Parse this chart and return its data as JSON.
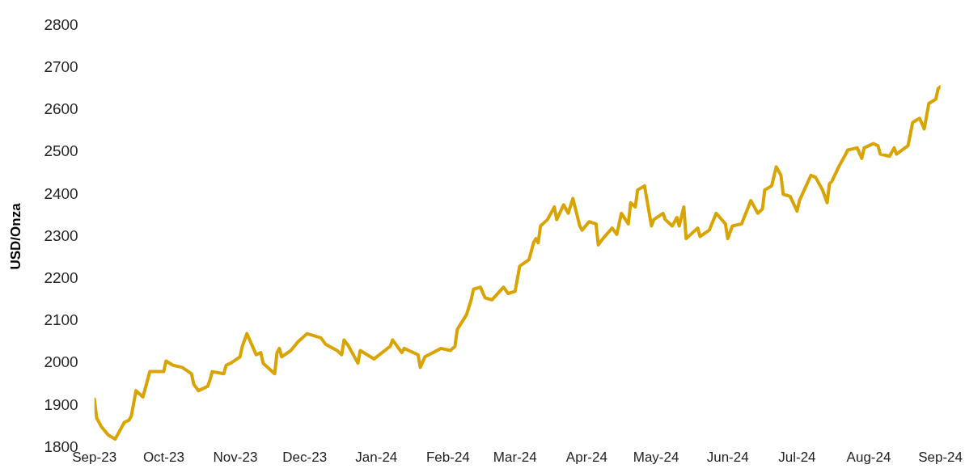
{
  "chart_data": {
    "type": "line",
    "ylabel": "USD/Onza",
    "legend": false,
    "grid": false,
    "marker": "none",
    "line_style": "solid",
    "xlim": [
      "2023-09-20",
      "2024-09-20"
    ],
    "xticks": [
      {
        "value": "2023-09-20",
        "label": "Sep-23"
      },
      {
        "value": "2023-10-20",
        "label": "Oct-23"
      },
      {
        "value": "2023-11-20",
        "label": "Nov-23"
      },
      {
        "value": "2023-12-20",
        "label": "Dec-23"
      },
      {
        "value": "2024-01-20",
        "label": "Jan-24"
      },
      {
        "value": "2024-02-20",
        "label": "Feb-24"
      },
      {
        "value": "2024-03-20",
        "label": "Mar-24"
      },
      {
        "value": "2024-04-20",
        "label": "Apr-24"
      },
      {
        "value": "2024-05-20",
        "label": "May-24"
      },
      {
        "value": "2024-06-20",
        "label": "Jun-24"
      },
      {
        "value": "2024-07-20",
        "label": "Jul-24"
      },
      {
        "value": "2024-08-20",
        "label": "Aug-24"
      },
      {
        "value": "2024-09-20",
        "label": "Sep-24"
      }
    ],
    "ylim": [
      1800,
      2800
    ],
    "yticks": [
      1800,
      1900,
      2000,
      2100,
      2200,
      2300,
      2400,
      2500,
      2600,
      2700,
      2800
    ],
    "series": [
      {
        "color": "#d9a400",
        "x": [
          "2023-09-20",
          "2023-09-21",
          "2023-09-23",
          "2023-09-26",
          "2023-09-29",
          "2023-10-03",
          "2023-10-05",
          "2023-10-06",
          "2023-10-08",
          "2023-10-11",
          "2023-10-14",
          "2023-10-20",
          "2023-10-21",
          "2023-10-24",
          "2023-10-28",
          "2023-11-01",
          "2023-11-02",
          "2023-11-04",
          "2023-11-08",
          "2023-11-09",
          "2023-11-10",
          "2023-11-15",
          "2023-11-16",
          "2023-11-18",
          "2023-11-22",
          "2023-11-23",
          "2023-11-25",
          "2023-11-29",
          "2023-12-01",
          "2023-12-02",
          "2023-12-07",
          "2023-12-08",
          "2023-12-09",
          "2023-12-10",
          "2023-12-14",
          "2023-12-17",
          "2023-12-21",
          "2023-12-27",
          "2023-12-29",
          "2024-01-03",
          "2024-01-05",
          "2024-01-06",
          "2024-01-08",
          "2024-01-12",
          "2024-01-13",
          "2024-01-16",
          "2024-01-19",
          "2024-01-26",
          "2024-01-27",
          "2024-01-31",
          "2024-02-01",
          "2024-02-07",
          "2024-02-08",
          "2024-02-10",
          "2024-02-17",
          "2024-02-21",
          "2024-02-23",
          "2024-02-24",
          "2024-02-28",
          "2024-03-01",
          "2024-03-02",
          "2024-03-05",
          "2024-03-07",
          "2024-03-10",
          "2024-03-15",
          "2024-03-17",
          "2024-03-20",
          "2024-03-22",
          "2024-03-26",
          "2024-03-28",
          "2024-03-29",
          "2024-03-30",
          "2024-03-31",
          "2024-04-03",
          "2024-04-06",
          "2024-04-07",
          "2024-04-10",
          "2024-04-12",
          "2024-04-14",
          "2024-04-17",
          "2024-04-18",
          "2024-04-21",
          "2024-04-24",
          "2024-04-25",
          "2024-04-27",
          "2024-05-01",
          "2024-05-03",
          "2024-05-05",
          "2024-05-08",
          "2024-05-09",
          "2024-05-11",
          "2024-05-12",
          "2024-05-15",
          "2024-05-18",
          "2024-05-19",
          "2024-05-23",
          "2024-05-24",
          "2024-05-27",
          "2024-05-29",
          "2024-05-30",
          "2024-06-01",
          "2024-06-02",
          "2024-06-07",
          "2024-06-08",
          "2024-06-12",
          "2024-06-15",
          "2024-06-19",
          "2024-06-20",
          "2024-06-22",
          "2024-06-26",
          "2024-06-30",
          "2024-07-03",
          "2024-07-05",
          "2024-07-06",
          "2024-07-09",
          "2024-07-11",
          "2024-07-13",
          "2024-07-14",
          "2024-07-17",
          "2024-07-20",
          "2024-07-21",
          "2024-07-26",
          "2024-07-28",
          "2024-07-31",
          "2024-08-02",
          "2024-08-03",
          "2024-08-04",
          "2024-08-07",
          "2024-08-11",
          "2024-08-15",
          "2024-08-17",
          "2024-08-18",
          "2024-08-22",
          "2024-08-24",
          "2024-08-25",
          "2024-08-29",
          "2024-08-31",
          "2024-09-01",
          "2024-09-06",
          "2024-09-08",
          "2024-09-11",
          "2024-09-13",
          "2024-09-15",
          "2024-09-18",
          "2024-09-19",
          "2024-09-20"
        ],
        "values": [
          1915,
          1870,
          1850,
          1830,
          1820,
          1860,
          1865,
          1875,
          1935,
          1920,
          1980,
          1980,
          2005,
          1995,
          1990,
          1975,
          1950,
          1935,
          1945,
          1960,
          1980,
          1975,
          1995,
          2000,
          2015,
          2040,
          2070,
          2020,
          2025,
          2000,
          1975,
          2025,
          2035,
          2015,
          2030,
          2050,
          2070,
          2060,
          2045,
          2030,
          2020,
          2055,
          2040,
          2000,
          2030,
          2020,
          2010,
          2040,
          2055,
          2025,
          2035,
          2020,
          1990,
          2015,
          2035,
          2030,
          2040,
          2080,
          2115,
          2150,
          2175,
          2180,
          2155,
          2150,
          2180,
          2165,
          2170,
          2230,
          2245,
          2285,
          2295,
          2285,
          2325,
          2340,
          2370,
          2340,
          2375,
          2355,
          2390,
          2325,
          2315,
          2335,
          2330,
          2280,
          2295,
          2320,
          2305,
          2355,
          2330,
          2380,
          2370,
          2410,
          2420,
          2325,
          2340,
          2355,
          2340,
          2325,
          2345,
          2325,
          2370,
          2295,
          2320,
          2300,
          2315,
          2355,
          2330,
          2295,
          2325,
          2330,
          2385,
          2355,
          2365,
          2410,
          2420,
          2465,
          2445,
          2400,
          2395,
          2360,
          2385,
          2445,
          2440,
          2410,
          2380,
          2425,
          2430,
          2465,
          2505,
          2510,
          2485,
          2510,
          2520,
          2515,
          2495,
          2490,
          2510,
          2495,
          2515,
          2570,
          2580,
          2555,
          2615,
          2625,
          2650,
          2655
        ]
      }
    ]
  }
}
